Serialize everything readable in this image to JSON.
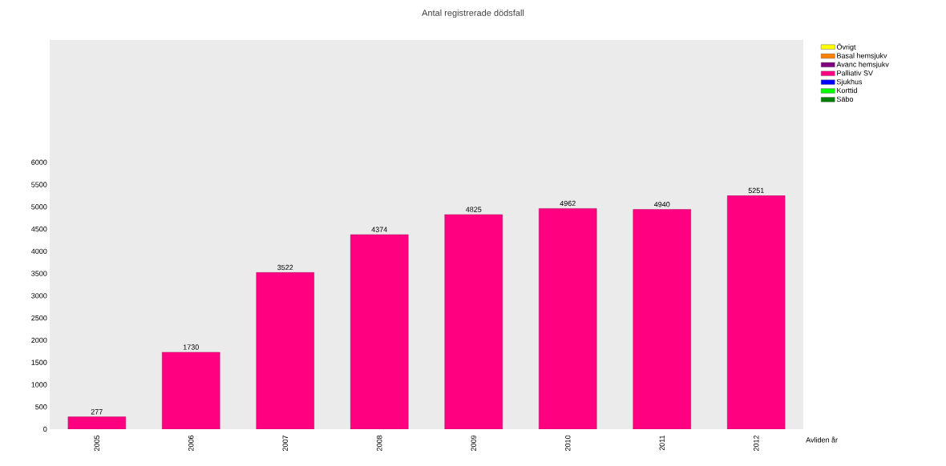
{
  "chart_data": {
    "type": "bar",
    "title": "Antal registrerade dödsfall",
    "xlabel": "Avliden år",
    "categories": [
      "2005",
      "2006",
      "2007",
      "2008",
      "2009",
      "2010",
      "2011",
      "2012"
    ],
    "series": [
      {
        "name": "Övrigt",
        "color": "#ffff00",
        "values": [
          null,
          null,
          null,
          null,
          null,
          null,
          null,
          null
        ]
      },
      {
        "name": "Basal hemsjukv",
        "color": "#ff8000",
        "values": [
          null,
          null,
          null,
          null,
          null,
          null,
          null,
          null
        ]
      },
      {
        "name": "Avanc hemsjukv",
        "color": "#800080",
        "values": [
          null,
          null,
          null,
          null,
          null,
          null,
          null,
          null
        ]
      },
      {
        "name": "Palliativ SV",
        "color": "#ff0080",
        "values": [
          277,
          1730,
          3522,
          4374,
          4825,
          4962,
          4940,
          5251
        ]
      },
      {
        "name": "Sjukhus",
        "color": "#0000ff",
        "values": [
          null,
          null,
          null,
          null,
          null,
          null,
          null,
          null
        ]
      },
      {
        "name": "Korttid",
        "color": "#00ff00",
        "values": [
          null,
          null,
          null,
          null,
          null,
          null,
          null,
          null
        ]
      },
      {
        "name": "Säbo",
        "color": "#008000",
        "values": [
          null,
          null,
          null,
          null,
          null,
          null,
          null,
          null
        ]
      }
    ],
    "ylim": [
      0,
      8750
    ],
    "yticks": [
      0,
      500,
      1000,
      1500,
      2000,
      2500,
      3000,
      3500,
      4000,
      4500,
      5000,
      5500,
      6000
    ],
    "data_labels": true,
    "legend": "top right",
    "grid": false
  }
}
